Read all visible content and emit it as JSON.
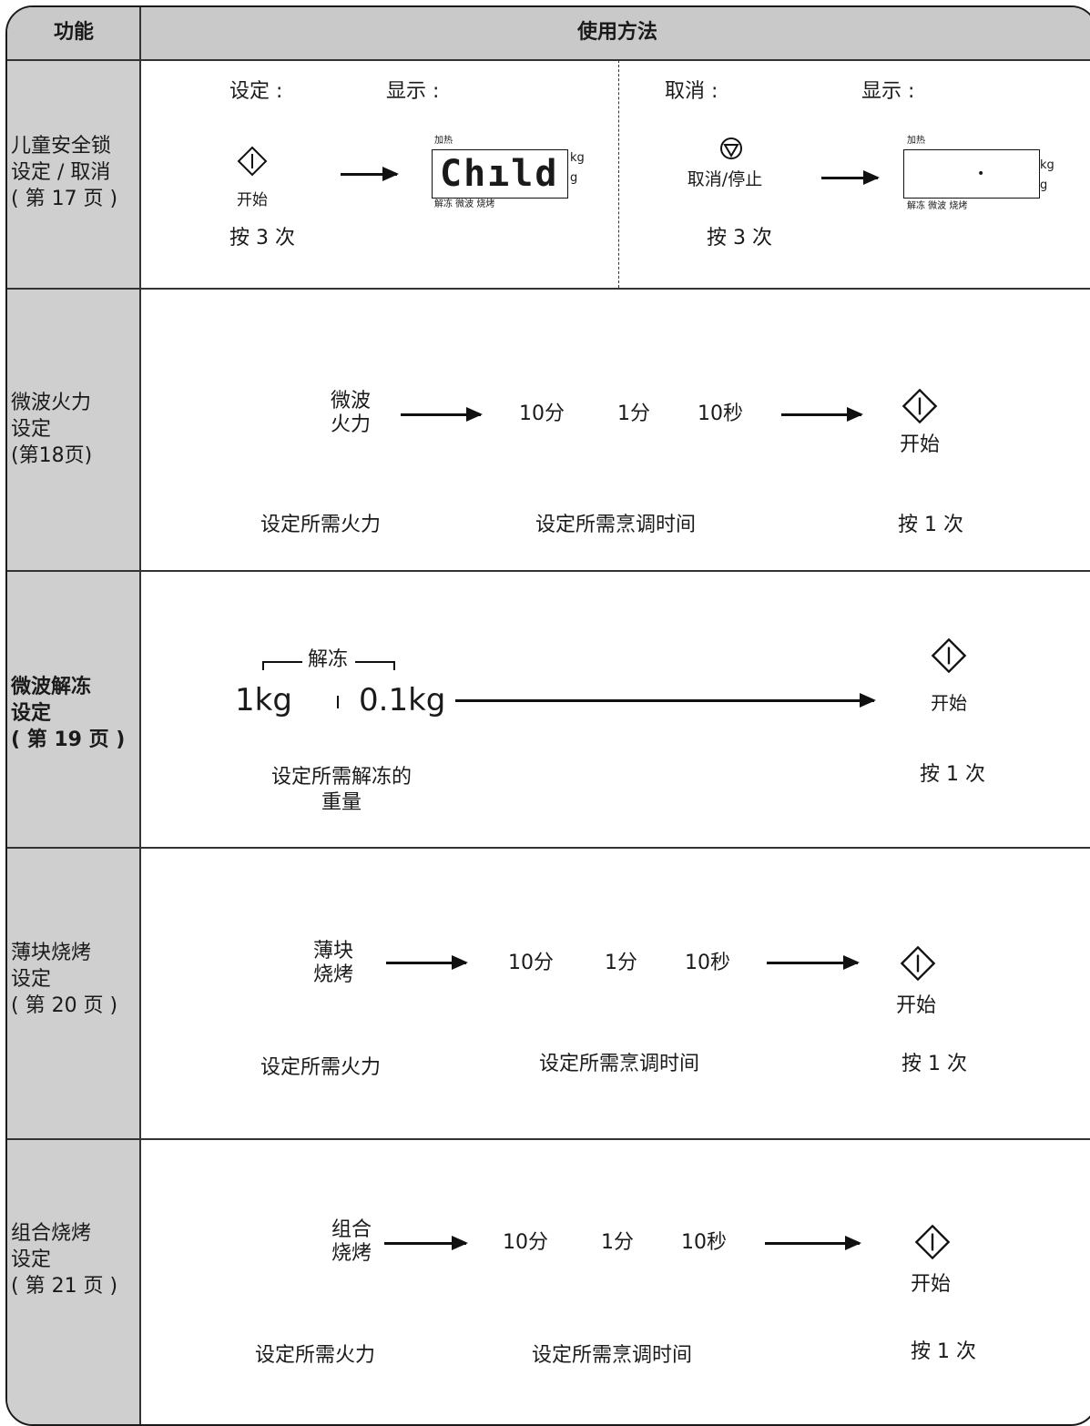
{
  "header": {
    "col1": "功能",
    "col2": "使用方法"
  },
  "rows": [
    {
      "label": "儿童安全锁\n设定 / 取消\n( 第 17 页 )",
      "set_label": "设定 :",
      "display_label": "显示 :",
      "start_btn": "开始",
      "press_set": "按 3 次",
      "cancel_label": "取消 :",
      "display_label2": "显示 :",
      "stop_btn": "取消/停止",
      "press_cancel": "按 3 次",
      "lcd_top": "加热",
      "lcd_bottom": "解冻  微波  烧烤",
      "lcd_text": "Chıld",
      "lcd_dot": "•",
      "kg": "kg",
      "g": "g"
    },
    {
      "label": "微波火力\n设定\n(第18页)",
      "button": "微波\n火力",
      "t1": "10分",
      "t2": "1分",
      "t3": "10秒",
      "start_btn": "开始",
      "note1": "设定所需火力",
      "note2": "设定所需烹调时间",
      "note3": "按 1 次"
    },
    {
      "label": "微波解冻\n设定\n( 第 19 页 )",
      "defrost": "解冻",
      "w1": "1kg",
      "w2": "0.1kg",
      "start_btn": "开始",
      "note1": "设定所需解冻的\n重量",
      "note3": "按 1 次"
    },
    {
      "label": "薄块烧烤\n设定\n( 第 20 页 )",
      "button": "薄块\n烧烤",
      "t1": "10分",
      "t2": "1分",
      "t3": "10秒",
      "start_btn": "开始",
      "note1": "设定所需火力",
      "note2": "设定所需烹调时间",
      "note3": "按 1 次"
    },
    {
      "label": "组合烧烤\n设定\n( 第 21 页 )",
      "button": "组合\n烧烤",
      "t1": "10分",
      "t2": "1分",
      "t3": "10秒",
      "start_btn": "开始",
      "note1": "设定所需火力",
      "note2": "设定所需烹调时间",
      "note3": "按 1 次"
    }
  ]
}
